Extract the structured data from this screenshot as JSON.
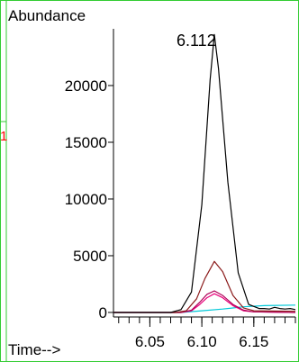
{
  "chart_data": {
    "type": "line",
    "ylabel": "Abundance",
    "xlabel": "Time-->",
    "xlim": [
      6.015,
      6.19
    ],
    "ylim": [
      -400,
      25000
    ],
    "x_ticks": [
      6.05,
      6.1,
      6.15
    ],
    "x_tick_labels": [
      "6.05",
      "6.10",
      "6.15"
    ],
    "y_ticks": [
      0,
      5000,
      10000,
      15000,
      20000
    ],
    "y_tick_labels": [
      "0",
      "5000",
      "10000",
      "15000",
      "20000"
    ],
    "peak_label": "6.112",
    "side_marker": "1",
    "grid": false,
    "series": [
      {
        "color": "#000000",
        "values": [
          [
            6.015,
            0
          ],
          [
            6.07,
            0
          ],
          [
            6.08,
            250
          ],
          [
            6.09,
            1800
          ],
          [
            6.1,
            9500
          ],
          [
            6.108,
            20500
          ],
          [
            6.112,
            24500
          ],
          [
            6.116,
            21500
          ],
          [
            6.125,
            11500
          ],
          [
            6.135,
            3500
          ],
          [
            6.145,
            700
          ],
          [
            6.155,
            350
          ],
          [
            6.16,
            350
          ],
          [
            6.165,
            300
          ],
          [
            6.17,
            450
          ],
          [
            6.175,
            350
          ],
          [
            6.18,
            300
          ],
          [
            6.185,
            350
          ],
          [
            6.19,
            250
          ]
        ]
      },
      {
        "color": "#8b1a1a",
        "values": [
          [
            6.015,
            0
          ],
          [
            6.075,
            0
          ],
          [
            6.085,
            150
          ],
          [
            6.095,
            1200
          ],
          [
            6.103,
            3000
          ],
          [
            6.112,
            4500
          ],
          [
            6.12,
            3600
          ],
          [
            6.13,
            1500
          ],
          [
            6.14,
            400
          ],
          [
            6.15,
            150
          ],
          [
            6.19,
            100
          ]
        ]
      },
      {
        "color": "#b00058",
        "values": [
          [
            6.015,
            0
          ],
          [
            6.08,
            0
          ],
          [
            6.09,
            200
          ],
          [
            6.098,
            900
          ],
          [
            6.105,
            1600
          ],
          [
            6.112,
            1900
          ],
          [
            6.12,
            1500
          ],
          [
            6.13,
            700
          ],
          [
            6.14,
            200
          ],
          [
            6.15,
            50
          ],
          [
            6.19,
            0
          ]
        ]
      },
      {
        "color": "#e8007a",
        "values": [
          [
            6.015,
            0
          ],
          [
            6.08,
            0
          ],
          [
            6.09,
            150
          ],
          [
            6.098,
            700
          ],
          [
            6.105,
            1300
          ],
          [
            6.112,
            1650
          ],
          [
            6.12,
            1300
          ],
          [
            6.13,
            600
          ],
          [
            6.14,
            150
          ],
          [
            6.15,
            50
          ],
          [
            6.19,
            0
          ]
        ]
      },
      {
        "color": "#00c8d8",
        "values": [
          [
            6.015,
            0
          ],
          [
            6.08,
            0
          ],
          [
            6.1,
            150
          ],
          [
            6.12,
            300
          ],
          [
            6.14,
            500
          ],
          [
            6.16,
            600
          ],
          [
            6.19,
            650
          ]
        ]
      }
    ]
  }
}
